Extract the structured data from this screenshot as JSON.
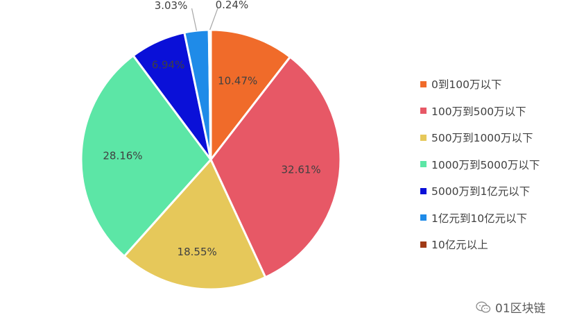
{
  "chart_data": {
    "type": "pie",
    "categories": [
      "0到100万以下",
      "100万到500万以下",
      "500万到1000万以下",
      "1000万到5000万以下",
      "5000万到1亿元以下",
      "1亿元到10亿元以下",
      "10亿元以上"
    ],
    "values": [
      10.47,
      32.61,
      18.55,
      28.16,
      6.94,
      3.03,
      0.24
    ],
    "data_labels": [
      "10.47%",
      "32.61%",
      "18.55%",
      "28.16%",
      "6.94%",
      "3.03%",
      "0.24%"
    ],
    "colors": [
      "#f06b2a",
      "#e75866",
      "#e6c85a",
      "#5ce6a6",
      "#0a10d8",
      "#1f8be8",
      "#a03a16"
    ],
    "legend_position": "right",
    "start_angle": "12 o'clock",
    "direction": "clockwise"
  },
  "watermark": {
    "text": "01区块链",
    "icon": "wechat-icon"
  }
}
